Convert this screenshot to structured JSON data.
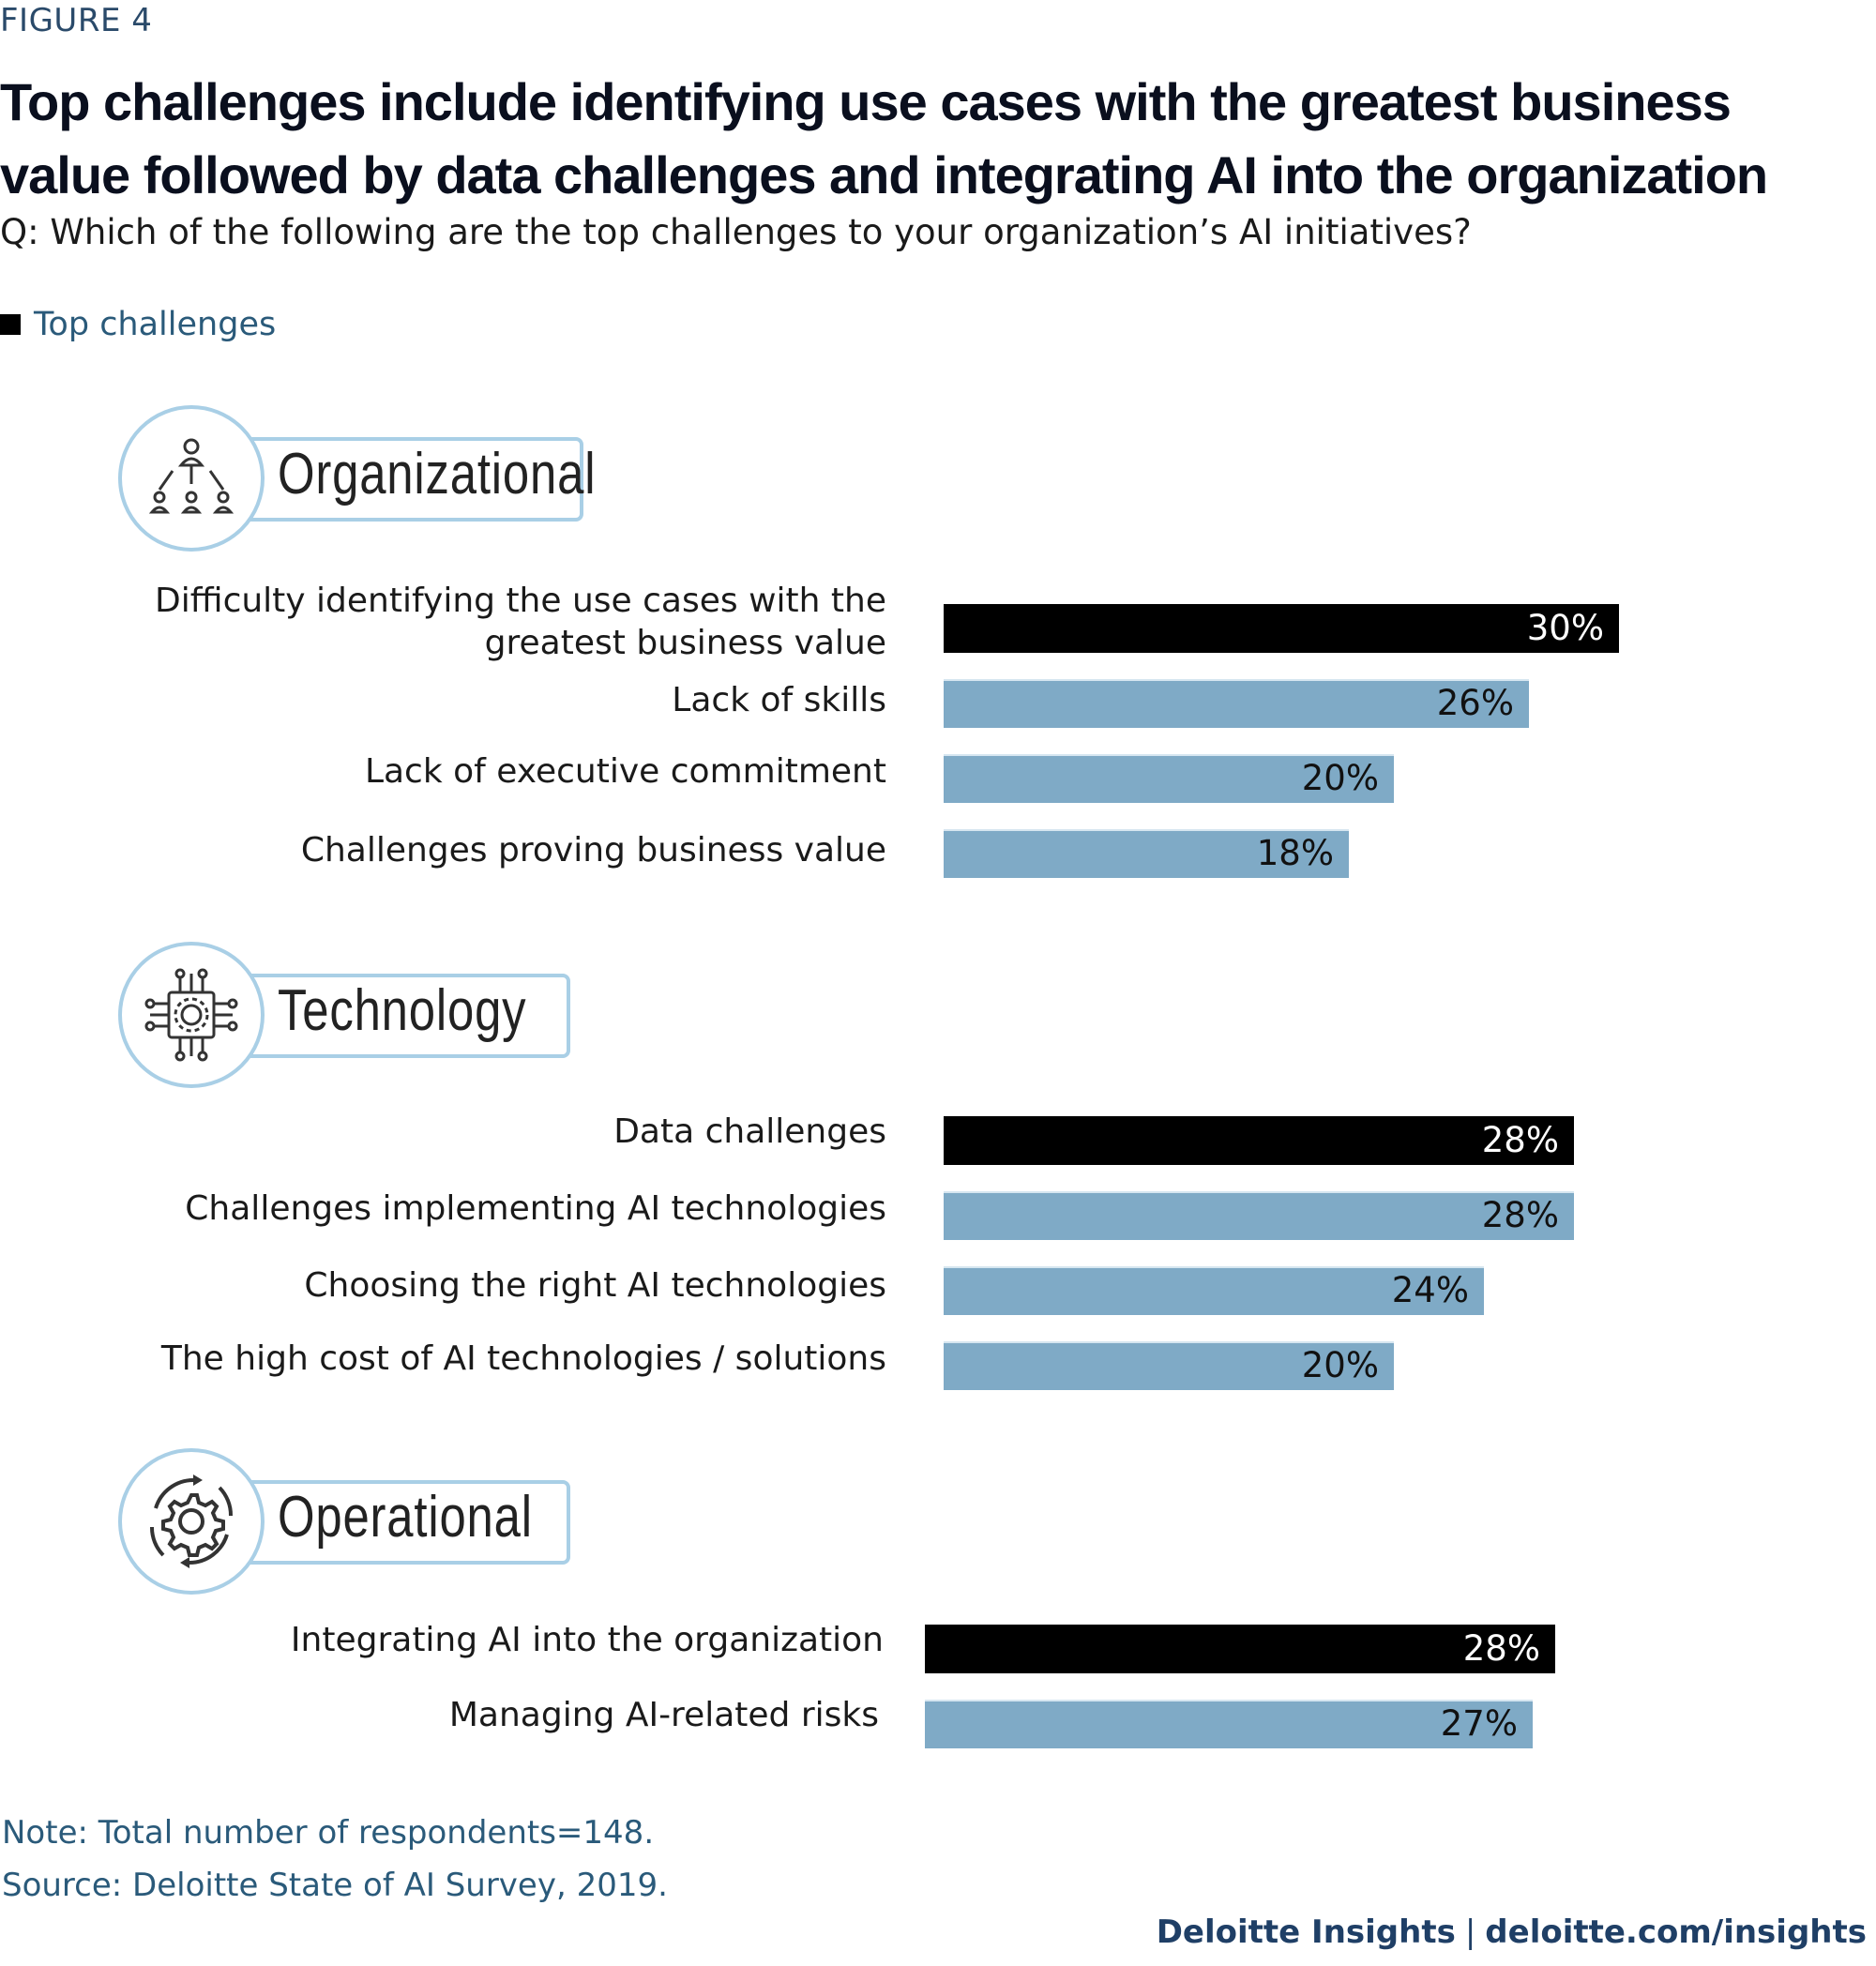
{
  "figure_label": "FIGURE 4",
  "title": "Top challenges include identifying use cases with the greatest business value followed by data challenges and integrating AI into the organization",
  "subtitle": "Q: Which of the following are the top challenges to your organization’s AI initiatives?",
  "legend": {
    "label": "Top challenges",
    "color": "#000000"
  },
  "sections": [
    {
      "name": "Organizational",
      "icon": "org-chart-icon"
    },
    {
      "name": "Technology",
      "icon": "chip-gear-icon"
    },
    {
      "name": "Operational",
      "icon": "cycle-gear-icon"
    }
  ],
  "colors": {
    "top": "#000000",
    "other": "#7faac6",
    "icon_ring": "#a9cfe6"
  },
  "chart_data": {
    "type": "bar",
    "orientation": "horizontal",
    "unit": "%",
    "groups": [
      {
        "name": "Organizational",
        "items": [
          {
            "label": "Difficulty identifying the use cases with the\ngreatest business value",
            "value": 30,
            "display": "30%",
            "top": true
          },
          {
            "label": "Lack of skills",
            "value": 26,
            "display": "26%",
            "top": false
          },
          {
            "label": "Lack of executive commitment",
            "value": 20,
            "display": "20%",
            "top": false
          },
          {
            "label": "Challenges proving business value",
            "value": 18,
            "display": "18%",
            "top": false
          }
        ]
      },
      {
        "name": "Technology",
        "items": [
          {
            "label": "Data challenges",
            "value": 28,
            "display": "28%",
            "top": true
          },
          {
            "label": "Challenges implementing AI technologies",
            "value": 28,
            "display": "28%",
            "top": false
          },
          {
            "label": "Choosing the right AI technologies",
            "value": 24,
            "display": "24%",
            "top": false
          },
          {
            "label": "The high cost of AI technologies / solutions",
            "value": 20,
            "display": "20%",
            "top": false
          }
        ]
      },
      {
        "name": "Operational",
        "items": [
          {
            "label": "Integrating AI into the organization",
            "value": 28,
            "display": "28%",
            "top": true
          },
          {
            "label": "Managing AI-related risks",
            "value": 27,
            "display": "27%",
            "top": false
          }
        ]
      }
    ]
  },
  "note": "Note: Total number of respondents=148.",
  "source": "Source: Deloitte State of AI Survey, 2019.",
  "footer": {
    "brand": "Deloitte Insights",
    "separator": "|",
    "url": "deloitte.com/insights"
  }
}
